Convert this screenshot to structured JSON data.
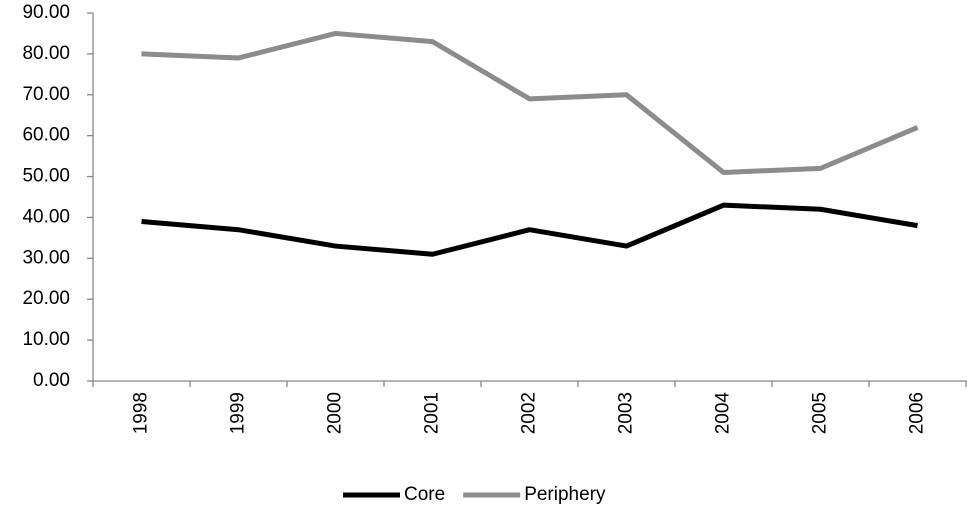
{
  "chart_data": {
    "type": "line",
    "categories": [
      "1998",
      "1999",
      "2000",
      "2001",
      "2002",
      "2003",
      "2004",
      "2005",
      "2006"
    ],
    "series": [
      {
        "name": "Core",
        "color": "#000000",
        "values": [
          39,
          37,
          33,
          31,
          37,
          33,
          43,
          42,
          38
        ]
      },
      {
        "name": "Periphery",
        "color": "#8c8c8c",
        "values": [
          80,
          79,
          85,
          83,
          69,
          70,
          51,
          52,
          62
        ]
      }
    ],
    "ylim": [
      0,
      90
    ],
    "yticks": [
      {
        "value": 0,
        "label": "0.00"
      },
      {
        "value": 10,
        "label": "10.00"
      },
      {
        "value": 20,
        "label": "20.00"
      },
      {
        "value": 30,
        "label": "30.00"
      },
      {
        "value": 40,
        "label": "40.00"
      },
      {
        "value": 50,
        "label": "50.00"
      },
      {
        "value": 60,
        "label": "60.00"
      },
      {
        "value": 70,
        "label": "70.00"
      },
      {
        "value": 80,
        "label": "80.00"
      },
      {
        "value": 90,
        "label": "90.00"
      }
    ],
    "grid": false,
    "legend": "bottom"
  }
}
